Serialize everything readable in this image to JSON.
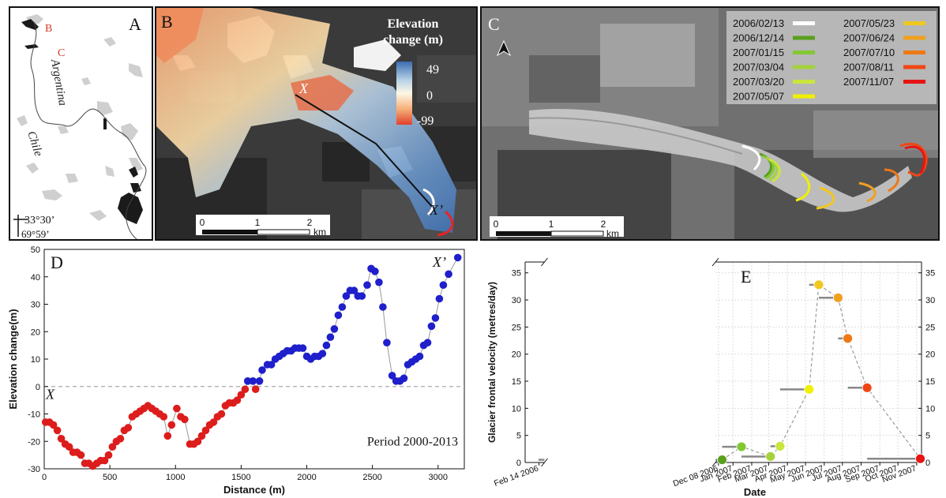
{
  "panels": {
    "A": {
      "letter": "A",
      "label_b": "B",
      "label_c": "C",
      "country_argentina": "Argentina",
      "country_chile": "Chile",
      "lat": "33°30’",
      "lon": "69°59’"
    },
    "B": {
      "letter": "B",
      "legend_title_1": "Elevation",
      "legend_title_2": "change (m)",
      "legend_max": "49",
      "legend_mid": "0",
      "legend_min": "-99",
      "point_x": "X",
      "point_x2": "X’",
      "scale_0": "0",
      "scale_1": "1",
      "scale_2": "2",
      "scale_unit": "km"
    },
    "C": {
      "letter": "C",
      "scale_0": "0",
      "scale_1": "1",
      "scale_2": "2",
      "scale_unit": "km",
      "legend": [
        {
          "date": "2006/02/13",
          "color": "#ffffff"
        },
        {
          "date": "2006/12/14",
          "color": "#5aa01e"
        },
        {
          "date": "2007/01/15",
          "color": "#82c832"
        },
        {
          "date": "2007/03/04",
          "color": "#a5d23c"
        },
        {
          "date": "2007/03/20",
          "color": "#c8e63c"
        },
        {
          "date": "2007/05/07",
          "color": "#f0f000"
        },
        {
          "date": "2007/05/23",
          "color": "#f0c81e"
        },
        {
          "date": "2007/06/24",
          "color": "#f0a01e"
        },
        {
          "date": "2007/07/10",
          "color": "#f07814"
        },
        {
          "date": "2007/08/11",
          "color": "#f04614"
        },
        {
          "date": "2007/11/07",
          "color": "#e61414"
        }
      ]
    }
  },
  "chart_data": [
    {
      "panel": "D",
      "type": "scatter",
      "letter": "D",
      "xlabel": "Distance (m)",
      "ylabel": "Elevation change(m)",
      "annotation": "Period 2000-2013",
      "label_start": "X",
      "label_end": "X’",
      "xlim": [
        0,
        3200
      ],
      "ylim": [
        -30,
        50
      ],
      "xticks": [
        "0",
        "500",
        "1000",
        "1500",
        "2000",
        "2500",
        "3000"
      ],
      "yticks": [
        "-30",
        "-20",
        "-10",
        "0",
        "10",
        "20",
        "30",
        "40",
        "50"
      ],
      "colors": {
        "negative": "#dd1c1c",
        "positive": "#1f1fcc"
      },
      "points": [
        [
          10,
          -13
        ],
        [
          40,
          -13
        ],
        [
          70,
          -14
        ],
        [
          100,
          -16
        ],
        [
          130,
          -19
        ],
        [
          160,
          -21
        ],
        [
          190,
          -22
        ],
        [
          220,
          -24
        ],
        [
          250,
          -24
        ],
        [
          280,
          -25
        ],
        [
          310,
          -28
        ],
        [
          340,
          -28
        ],
        [
          370,
          -29
        ],
        [
          400,
          -28
        ],
        [
          430,
          -27
        ],
        [
          460,
          -27
        ],
        [
          490,
          -25
        ],
        [
          520,
          -22
        ],
        [
          550,
          -20
        ],
        [
          580,
          -19
        ],
        [
          610,
          -16
        ],
        [
          640,
          -15
        ],
        [
          670,
          -11
        ],
        [
          700,
          -10
        ],
        [
          730,
          -9
        ],
        [
          760,
          -8
        ],
        [
          790,
          -7
        ],
        [
          820,
          -8
        ],
        [
          850,
          -9
        ],
        [
          880,
          -10
        ],
        [
          910,
          -11
        ],
        [
          940,
          -18
        ],
        [
          970,
          -14
        ],
        [
          1010,
          -8
        ],
        [
          1040,
          -11
        ],
        [
          1070,
          -12
        ],
        [
          1110,
          -21
        ],
        [
          1140,
          -21
        ],
        [
          1170,
          -20
        ],
        [
          1200,
          -18
        ],
        [
          1230,
          -16
        ],
        [
          1260,
          -14
        ],
        [
          1290,
          -13
        ],
        [
          1320,
          -11
        ],
        [
          1350,
          -10
        ],
        [
          1380,
          -7
        ],
        [
          1410,
          -6
        ],
        [
          1440,
          -6
        ],
        [
          1470,
          -5
        ],
        [
          1500,
          -3
        ],
        [
          1530,
          -1
        ],
        [
          1550,
          2
        ],
        [
          1590,
          2
        ],
        [
          1610,
          -1
        ],
        [
          1640,
          2
        ],
        [
          1660,
          6
        ],
        [
          1700,
          8
        ],
        [
          1730,
          8
        ],
        [
          1760,
          10
        ],
        [
          1790,
          11
        ],
        [
          1820,
          12
        ],
        [
          1850,
          13
        ],
        [
          1880,
          13
        ],
        [
          1910,
          14
        ],
        [
          1940,
          14
        ],
        [
          1970,
          14
        ],
        [
          2000,
          11
        ],
        [
          2030,
          10
        ],
        [
          2060,
          11
        ],
        [
          2090,
          11
        ],
        [
          2120,
          12
        ],
        [
          2150,
          15
        ],
        [
          2180,
          18
        ],
        [
          2210,
          21
        ],
        [
          2240,
          26
        ],
        [
          2270,
          29
        ],
        [
          2300,
          33
        ],
        [
          2330,
          35
        ],
        [
          2360,
          35
        ],
        [
          2390,
          33
        ],
        [
          2420,
          33
        ],
        [
          2460,
          37
        ],
        [
          2490,
          43
        ],
        [
          2520,
          42
        ],
        [
          2550,
          38
        ],
        [
          2580,
          29
        ],
        [
          2610,
          16
        ],
        [
          2650,
          4
        ],
        [
          2680,
          2
        ],
        [
          2710,
          2
        ],
        [
          2740,
          3
        ],
        [
          2770,
          8
        ],
        [
          2800,
          9
        ],
        [
          2830,
          10
        ],
        [
          2860,
          11
        ],
        [
          2890,
          15
        ],
        [
          2920,
          16
        ],
        [
          2950,
          22
        ],
        [
          2980,
          25
        ],
        [
          3010,
          32
        ],
        [
          3040,
          37
        ],
        [
          3080,
          41
        ],
        [
          3150,
          47
        ]
      ]
    },
    {
      "panel": "E",
      "type": "scatter",
      "letter": "E",
      "xlabel": "Date",
      "ylabel": "Glacier frontal velocity (metres/day)",
      "ylim": [
        0,
        37
      ],
      "yticks": [
        "0",
        "5",
        "10",
        "15",
        "20",
        "25",
        "30",
        "35"
      ],
      "xticks": [
        "Feb 14 2006",
        "Dec 08 2006",
        "Jan 2007",
        "Feb 2007",
        "Mar 2007",
        "Apr 2007",
        "May 2007",
        "Jun 2007",
        "Jul 2007",
        "Aug 2007",
        "Sep 2007",
        "Oct 2007",
        "Nov 2007"
      ],
      "xtick_days": [
        -297,
        0,
        24,
        55,
        83,
        114,
        144,
        175,
        205,
        236,
        267,
        297,
        328
      ],
      "xlim_days": [
        -320,
        336
      ],
      "axis_break_after_day": -288,
      "axis_resume_day": -5,
      "points": [
        {
          "interval": [
            "2006/02/13",
            "2006/12/14"
          ],
          "start_day": -298,
          "end_day": 6,
          "mid_day": 6,
          "velocity": 0.5,
          "color": "#5aa01e"
        },
        {
          "interval": [
            "2006/12/14",
            "2007/01/15"
          ],
          "start_day": 6,
          "end_day": 38,
          "mid_day": 38,
          "velocity": 2.9,
          "color": "#82c832"
        },
        {
          "interval": [
            "2007/01/15",
            "2007/03/04"
          ],
          "start_day": 38,
          "end_day": 86,
          "mid_day": 86,
          "velocity": 1.1,
          "color": "#a5d23c"
        },
        {
          "interval": [
            "2007/03/04",
            "2007/03/20"
          ],
          "start_day": 86,
          "end_day": 102,
          "mid_day": 102,
          "velocity": 3.0,
          "color": "#c8e63c"
        },
        {
          "interval": [
            "2007/03/20",
            "2007/05/07"
          ],
          "start_day": 102,
          "end_day": 150,
          "mid_day": 150,
          "velocity": 13.5,
          "color": "#f0f000"
        },
        {
          "interval": [
            "2007/05/07",
            "2007/05/23"
          ],
          "start_day": 150,
          "end_day": 166,
          "mid_day": 166,
          "velocity": 32.8,
          "color": "#f0c81e"
        },
        {
          "interval": [
            "2007/05/23",
            "2007/06/24"
          ],
          "start_day": 166,
          "end_day": 198,
          "mid_day": 198,
          "velocity": 30.4,
          "color": "#f0a01e"
        },
        {
          "interval": [
            "2007/06/24",
            "2007/07/10"
          ],
          "start_day": 198,
          "end_day": 214,
          "mid_day": 214,
          "velocity": 22.9,
          "color": "#f07814"
        },
        {
          "interval": [
            "2007/07/10",
            "2007/08/11"
          ],
          "start_day": 214,
          "end_day": 246,
          "mid_day": 246,
          "velocity": 13.8,
          "color": "#f04614"
        },
        {
          "interval": [
            "2007/08/11",
            "2007/11/07"
          ],
          "start_day": 246,
          "end_day": 334,
          "mid_day": 334,
          "velocity": 0.7,
          "color": "#e61414"
        }
      ]
    }
  ]
}
